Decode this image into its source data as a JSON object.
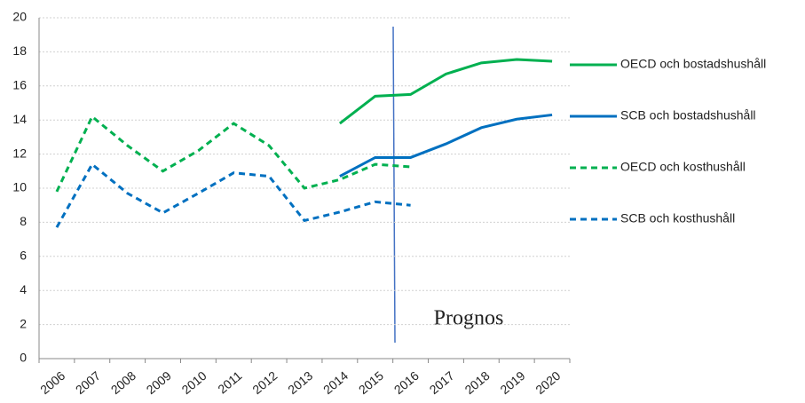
{
  "chart_data": {
    "type": "line",
    "categories": [
      "2006",
      "2007",
      "2008",
      "2009",
      "2010",
      "2011",
      "2012",
      "2013",
      "2014",
      "2015",
      "2016",
      "2017",
      "2018",
      "2019",
      "2020"
    ],
    "series": [
      {
        "name": "OECD och bostadshushåll",
        "color": "#00b050",
        "dashed": false,
        "values": [
          null,
          null,
          null,
          null,
          null,
          null,
          null,
          null,
          13.8,
          15.4,
          15.5,
          16.7,
          17.35,
          17.55,
          17.45
        ]
      },
      {
        "name": "SCB och bostadshushåll",
        "color": "#0070c0",
        "dashed": false,
        "values": [
          null,
          null,
          null,
          null,
          null,
          null,
          null,
          null,
          10.7,
          11.8,
          11.8,
          12.6,
          13.55,
          14.05,
          14.3
        ]
      },
      {
        "name": "OECD och kosthushåll",
        "color": "#00b050",
        "dashed": true,
        "values": [
          9.8,
          14.2,
          12.5,
          11.0,
          12.2,
          13.8,
          12.5,
          10.0,
          10.5,
          11.4,
          11.25,
          null,
          null,
          null,
          null
        ]
      },
      {
        "name": "SCB och kosthushåll",
        "color": "#0070c0",
        "dashed": true,
        "values": [
          7.7,
          11.4,
          9.7,
          8.55,
          9.7,
          10.9,
          10.7,
          8.1,
          8.6,
          9.2,
          9.0,
          null,
          null,
          null,
          null
        ]
      }
    ],
    "ylim": [
      0,
      20
    ],
    "yticks": [
      0,
      2,
      4,
      6,
      8,
      10,
      12,
      14,
      16,
      18,
      20
    ],
    "grid": true,
    "annotation": "Prognos",
    "legend": "right"
  }
}
